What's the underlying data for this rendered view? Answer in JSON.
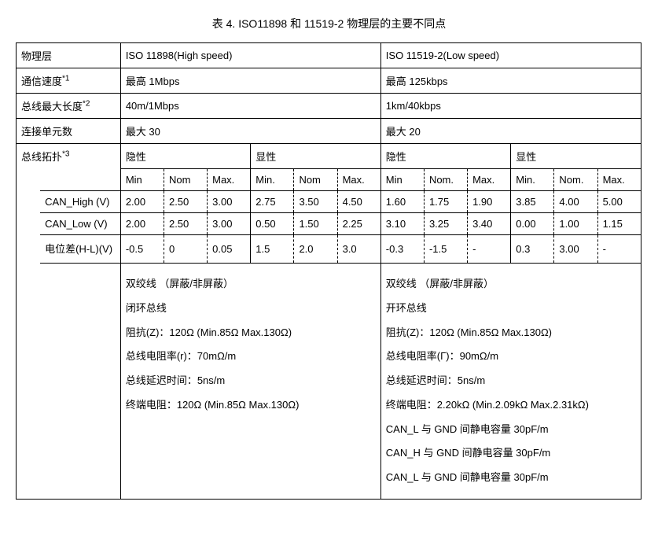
{
  "caption": "表 4.   ISO11898 和 11519-2 物理层的主要不同点",
  "headers": {
    "phys_layer": "物理层",
    "iso11898": "ISO 11898(High speed)",
    "iso11519": "ISO 11519-2(Low speed)"
  },
  "rows": {
    "speed": {
      "label": "通信速度",
      "sup": "*1",
      "hs": "最高 1Mbps",
      "ls": "最高 125kbps"
    },
    "length": {
      "label": "总线最大长度",
      "sup": "*2",
      "hs": "40m/1Mbps",
      "ls": "1km/40kbps"
    },
    "units": {
      "label": "连接单元数",
      "hs": "最大 30",
      "ls": "最大 20"
    },
    "topology": {
      "label": "总线拓扑",
      "sup": "*3",
      "recessive": "隐性",
      "dominant": "显性",
      "min": "Min",
      "nom": "Nom",
      "max": "Max.",
      "min_dot": "Min.",
      "nom_dot": "Nom.",
      "can_high": "CAN_High (V)",
      "can_low": "CAN_Low (V)",
      "diff": "电位差(H-L)(V)",
      "hs_rec_high": [
        "2.00",
        "2.50",
        "3.00"
      ],
      "hs_dom_high": [
        "2.75",
        "3.50",
        "4.50"
      ],
      "ls_rec_high": [
        "1.60",
        "1.75",
        "1.90"
      ],
      "ls_dom_high": [
        "3.85",
        "4.00",
        "5.00"
      ],
      "hs_rec_low": [
        "2.00",
        "2.50",
        "3.00"
      ],
      "hs_dom_low": [
        "0.50",
        "1.50",
        "2.25"
      ],
      "ls_rec_low": [
        "3.10",
        "3.25",
        "3.40"
      ],
      "ls_dom_low": [
        "0.00",
        "1.00",
        "1.15"
      ],
      "hs_rec_diff": [
        "-0.5",
        "0",
        "0.05"
      ],
      "hs_dom_diff": [
        "1.5",
        "2.0",
        "3.0"
      ],
      "ls_rec_diff": [
        "-0.3",
        "-1.5",
        "-"
      ],
      "ls_dom_diff": [
        "0.3",
        "3.00",
        "-"
      ]
    },
    "details": {
      "hs": [
        "双绞线 （屏蔽/非屏蔽）",
        "闭环总线",
        "阻抗(Z)：120Ω (Min.85Ω Max.130Ω)",
        "总线电阻率(r)：70mΩ/m",
        "总线延迟时间：5ns/m",
        "终端电阻：120Ω (Min.85Ω Max.130Ω)"
      ],
      "ls": [
        "双绞线 （屏蔽/非屏蔽）",
        "开环总线",
        "阻抗(Z)：120Ω (Min.85Ω Max.130Ω)",
        "总线电阻率(Γ)：90mΩ/m",
        "总线延迟时间：5ns/m",
        "终端电阻：2.20kΩ (Min.2.09kΩ Max.2.31kΩ)",
        "CAN_L 与 GND 间静电容量   30pF/m",
        "CAN_H 与 GND 间静电容量   30pF/m",
        "CAN_L 与 GND 间静电容量   30pF/m"
      ]
    }
  }
}
